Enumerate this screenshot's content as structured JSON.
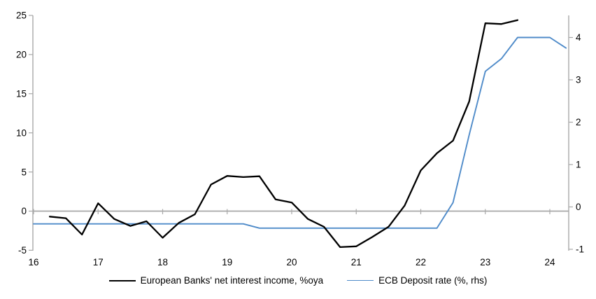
{
  "chart_data": {
    "type": "line",
    "title": "",
    "legend_position": "bottom-center",
    "grid": "zero-line-only",
    "colors": {
      "background": "#ffffff",
      "axis": "#a8a8a8",
      "grid": "#a8a8a8",
      "text": "#000000"
    },
    "x_axis": {
      "label": "",
      "ticks": [
        16,
        17,
        18,
        19,
        20,
        21,
        22,
        23,
        24
      ],
      "range": [
        16,
        24.3
      ],
      "unit": "year (20xx)"
    },
    "left_axis": {
      "label": "",
      "ticks": [
        25,
        20,
        15,
        10,
        5,
        0,
        -5
      ],
      "range": [
        -5,
        25
      ]
    },
    "right_axis": {
      "label": "",
      "ticks": [
        4,
        3,
        2,
        1,
        0,
        -1
      ],
      "range": [
        -1.05,
        4.55
      ]
    },
    "series": [
      {
        "name": "European Banks' net interest income, %oya",
        "axis": "left",
        "color": "#000000",
        "line_width": 2.3,
        "x": [
          16.25,
          16.5,
          16.75,
          17.0,
          17.25,
          17.5,
          17.75,
          18.0,
          18.25,
          18.5,
          18.75,
          19.0,
          19.25,
          19.5,
          19.75,
          20.0,
          20.25,
          20.5,
          20.75,
          21.0,
          21.25,
          21.5,
          21.75,
          22.0,
          22.25,
          22.5,
          22.75,
          23.0,
          23.25,
          23.5
        ],
        "y": [
          -0.7,
          -0.9,
          -3.0,
          1.0,
          -1.0,
          -1.9,
          -1.3,
          -3.4,
          -1.5,
          -0.4,
          3.4,
          4.5,
          4.35,
          4.45,
          1.5,
          1.1,
          -1.0,
          -2.0,
          -4.6,
          -4.5,
          -3.3,
          -2.0,
          0.7,
          5.2,
          7.4,
          9.0,
          14.0,
          24.0,
          23.9,
          24.4
        ]
      },
      {
        "name": "ECB Deposit rate (%, rhs)",
        "axis": "right",
        "color": "#4f8bc9",
        "line_width": 1.9,
        "x": [
          16.0,
          16.25,
          16.5,
          16.75,
          17.0,
          17.25,
          17.5,
          17.75,
          18.0,
          18.25,
          18.5,
          18.75,
          19.0,
          19.25,
          19.5,
          19.75,
          20.0,
          20.25,
          20.5,
          20.75,
          21.0,
          21.25,
          21.5,
          21.75,
          22.0,
          22.25,
          22.5,
          22.75,
          23.0,
          23.25,
          23.5,
          23.75,
          24.0,
          24.25
        ],
        "y": [
          -0.4,
          -0.4,
          -0.4,
          -0.4,
          -0.4,
          -0.4,
          -0.4,
          -0.4,
          -0.4,
          -0.4,
          -0.4,
          -0.4,
          -0.4,
          -0.4,
          -0.5,
          -0.5,
          -0.5,
          -0.5,
          -0.5,
          -0.5,
          -0.5,
          -0.5,
          -0.5,
          -0.5,
          -0.5,
          -0.5,
          0.1,
          1.7,
          3.2,
          3.5,
          4.0,
          4.0,
          4.0,
          3.75
        ]
      }
    ]
  }
}
